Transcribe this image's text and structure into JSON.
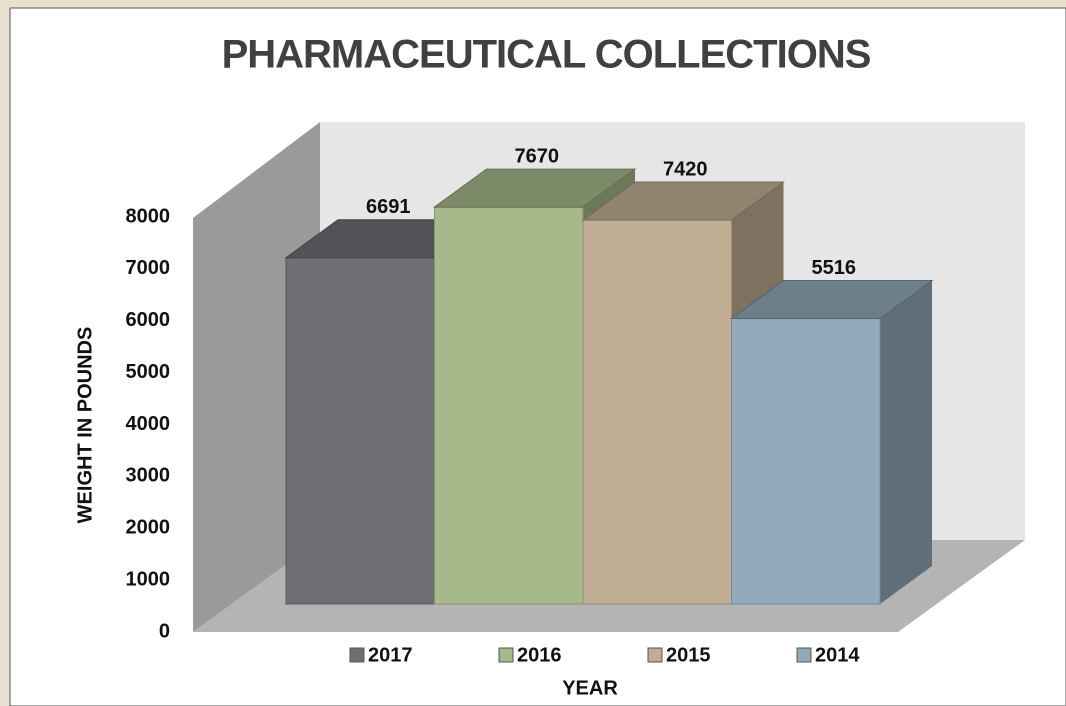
{
  "chart_data": {
    "type": "bar",
    "title": "PHARMACEUTICAL COLLECTIONS",
    "categories": [
      "2017",
      "2016",
      "2015",
      "2014"
    ],
    "values": [
      6691,
      7670,
      7420,
      5516
    ],
    "colors": [
      "#6f6e74",
      "#a7b88a",
      "#c0ae94",
      "#92a9ba"
    ],
    "ylim": [
      0,
      8000
    ],
    "yticks": [
      0,
      1000,
      2000,
      3000,
      4000,
      5000,
      6000,
      7000,
      8000
    ],
    "y_label": "WEIGHT IN POUNDS",
    "x_label": "YEAR",
    "legend": "bottom"
  }
}
